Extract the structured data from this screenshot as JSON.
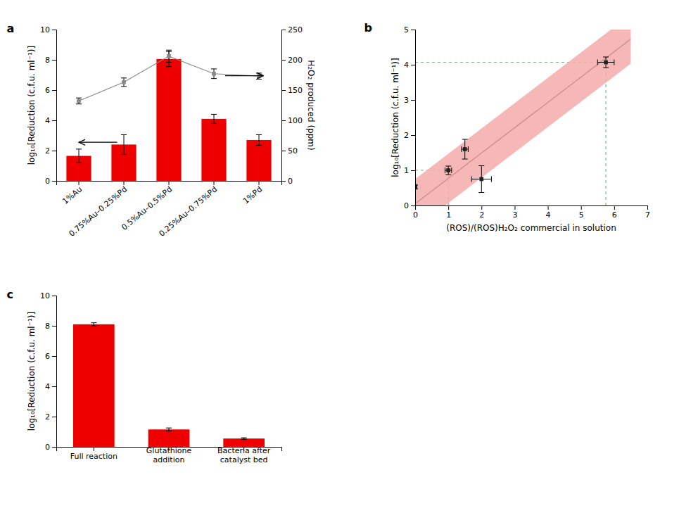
{
  "chart_data": [
    {
      "type": "bar",
      "title": "a",
      "categories": [
        "1%Au",
        "0.75%Au–0.25%Pd",
        "0.5%Au–0.5%Pd",
        "0.25%Au–0.75%Pd",
        "1%Pd"
      ],
      "series": [
        {
          "type": "bar",
          "color": "#ee0000",
          "values": [
            1.65,
            2.4,
            8.05,
            4.1,
            2.7
          ],
          "errors": [
            0.45,
            0.65,
            0.5,
            0.3,
            0.35
          ]
        },
        {
          "type": "line",
          "axis": "y2",
          "color": "#888888",
          "marker": "square",
          "values": [
            132,
            163,
            206,
            177,
            173
          ],
          "errors": [
            5,
            7,
            10,
            8,
            5
          ]
        }
      ],
      "ylabel": "log₁₀[Reduction (c.f.u. ml⁻¹)]",
      "y2label": "H₂O₂ produced (ppm)",
      "ylim": [
        0,
        10
      ],
      "yticks": [
        0,
        2,
        4,
        6,
        8,
        10
      ],
      "y2lim": [
        0,
        250
      ],
      "y2ticks": [
        0,
        50,
        100,
        150,
        200,
        250
      ],
      "grid": false
    },
    {
      "type": "scatter",
      "title": "b",
      "series": [
        {
          "type": "line",
          "line_style": "dashed",
          "color": "#77bb77",
          "x": [
            1.0,
            1.0
          ],
          "values": [
            0,
            1.0
          ]
        },
        {
          "type": "line",
          "line_style": "dashed",
          "color": "#77bb77",
          "x": [
            0,
            1.0
          ],
          "values": [
            1.0,
            1.0
          ]
        },
        {
          "type": "line",
          "line_style": "dashed",
          "color": "#77bb77",
          "x": [
            5.75,
            5.75
          ],
          "values": [
            0,
            4.07
          ]
        },
        {
          "type": "line",
          "line_style": "dashed",
          "color": "#77bb77",
          "x": [
            0,
            5.75
          ],
          "values": [
            4.07,
            4.07
          ]
        },
        {
          "type": "area",
          "color": "#f5aaaa",
          "x": [
            0.0,
            6.5
          ],
          "lower": [
            -0.65,
            4.03
          ],
          "upper": [
            0.75,
            5.43
          ]
        },
        {
          "type": "line",
          "color": "#cc8888",
          "x": [
            0.0,
            6.5
          ],
          "values": [
            0.05,
            4.73
          ]
        },
        {
          "type": "scatter",
          "marker": "square",
          "color": "#222222",
          "x": [
            0.0,
            1.0,
            1.5,
            2.0,
            5.75
          ],
          "values": [
            0.53,
            1.0,
            1.6,
            0.75,
            4.07
          ],
          "x_errors": [
            0.05,
            0.1,
            0.1,
            0.3,
            0.25
          ],
          "errors": [
            0.05,
            0.12,
            0.28,
            0.38,
            0.15
          ]
        }
      ],
      "xlabel": "(ROS)/(ROS)H₂O₂ commercial in solution",
      "ylabel": "log₁₀[Reduction (c.f.u. ml⁻¹)]",
      "xlim": [
        0,
        7
      ],
      "xticks": [
        0,
        1,
        2,
        3,
        4,
        5,
        6,
        7
      ],
      "ylim": [
        0,
        5
      ],
      "yticks": [
        0,
        1,
        2,
        3,
        4,
        5
      ],
      "grid": false
    },
    {
      "type": "bar",
      "title": "c",
      "categories": [
        "Full reaction",
        "Glutathione\naddition",
        "Bacteria after\ncatalyst bed"
      ],
      "series": [
        {
          "type": "bar",
          "color": "#ee0000",
          "values": [
            8.1,
            1.15,
            0.55
          ],
          "errors": [
            0.1,
            0.1,
            0.05
          ]
        }
      ],
      "ylabel": "log₁₀[Reduction (c.f.u. ml⁻¹)]",
      "ylim": [
        0,
        10
      ],
      "yticks": [
        0,
        2,
        4,
        6,
        8,
        10
      ],
      "grid": false
    }
  ]
}
